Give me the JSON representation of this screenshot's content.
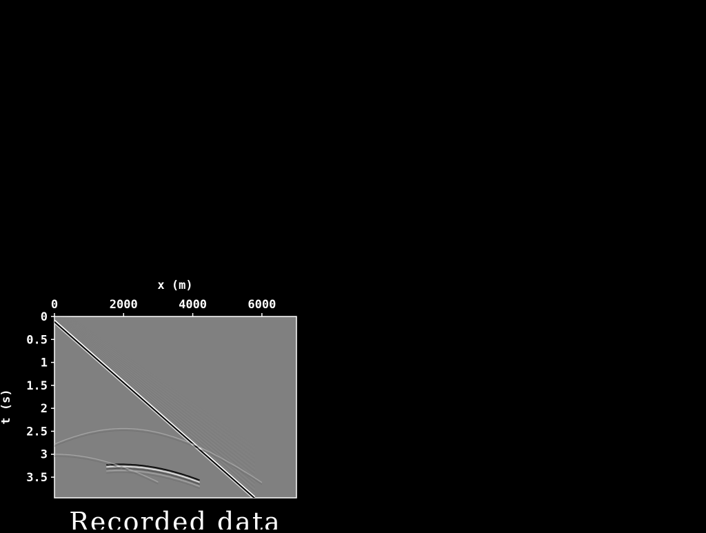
{
  "chart_data": {
    "type": "heatmap",
    "title": "Recorded data",
    "xlabel": "x (m)",
    "ylabel": "t (s)",
    "xlim": [
      0,
      7000
    ],
    "ylim": [
      0,
      3.95
    ],
    "x_ticks": [
      {
        "value": 0,
        "label": "0"
      },
      {
        "value": 2000,
        "label": "2000"
      },
      {
        "value": 4000,
        "label": "4000"
      },
      {
        "value": 6000,
        "label": "6000"
      }
    ],
    "y_ticks": [
      {
        "value": 0,
        "label": "0"
      },
      {
        "value": 0.5,
        "label": "0.5"
      },
      {
        "value": 1,
        "label": "1"
      },
      {
        "value": 1.5,
        "label": "1.5"
      },
      {
        "value": 2,
        "label": "2"
      },
      {
        "value": 2.5,
        "label": "2.5"
      },
      {
        "value": 3,
        "label": "3"
      },
      {
        "value": 3.5,
        "label": "3.5"
      }
    ],
    "y_inverted": true,
    "x_axis_position": "top",
    "colormap": "grayscale",
    "background_value_color": "#808080",
    "events": [
      {
        "name": "direct-arrival",
        "kind": "linear",
        "points": [
          [
            0,
            0.1
          ],
          [
            5800,
            3.95
          ]
        ],
        "amplitude": "strong"
      },
      {
        "name": "reflection-1",
        "kind": "hyperbola",
        "apex_x": 2000,
        "apex_t": 2.44,
        "extent": [
          0,
          6000
        ],
        "amplitude": "weak"
      },
      {
        "name": "reflection-2",
        "kind": "hyperbola",
        "apex_x": 1900,
        "apex_t": 3.22,
        "extent": [
          1500,
          4200
        ],
        "amplitude": "strong"
      },
      {
        "name": "reflection-3",
        "kind": "hyperbola",
        "apex_x": 0,
        "apex_t": 3.0,
        "extent": [
          0,
          3000
        ],
        "amplitude": "weak"
      }
    ]
  }
}
